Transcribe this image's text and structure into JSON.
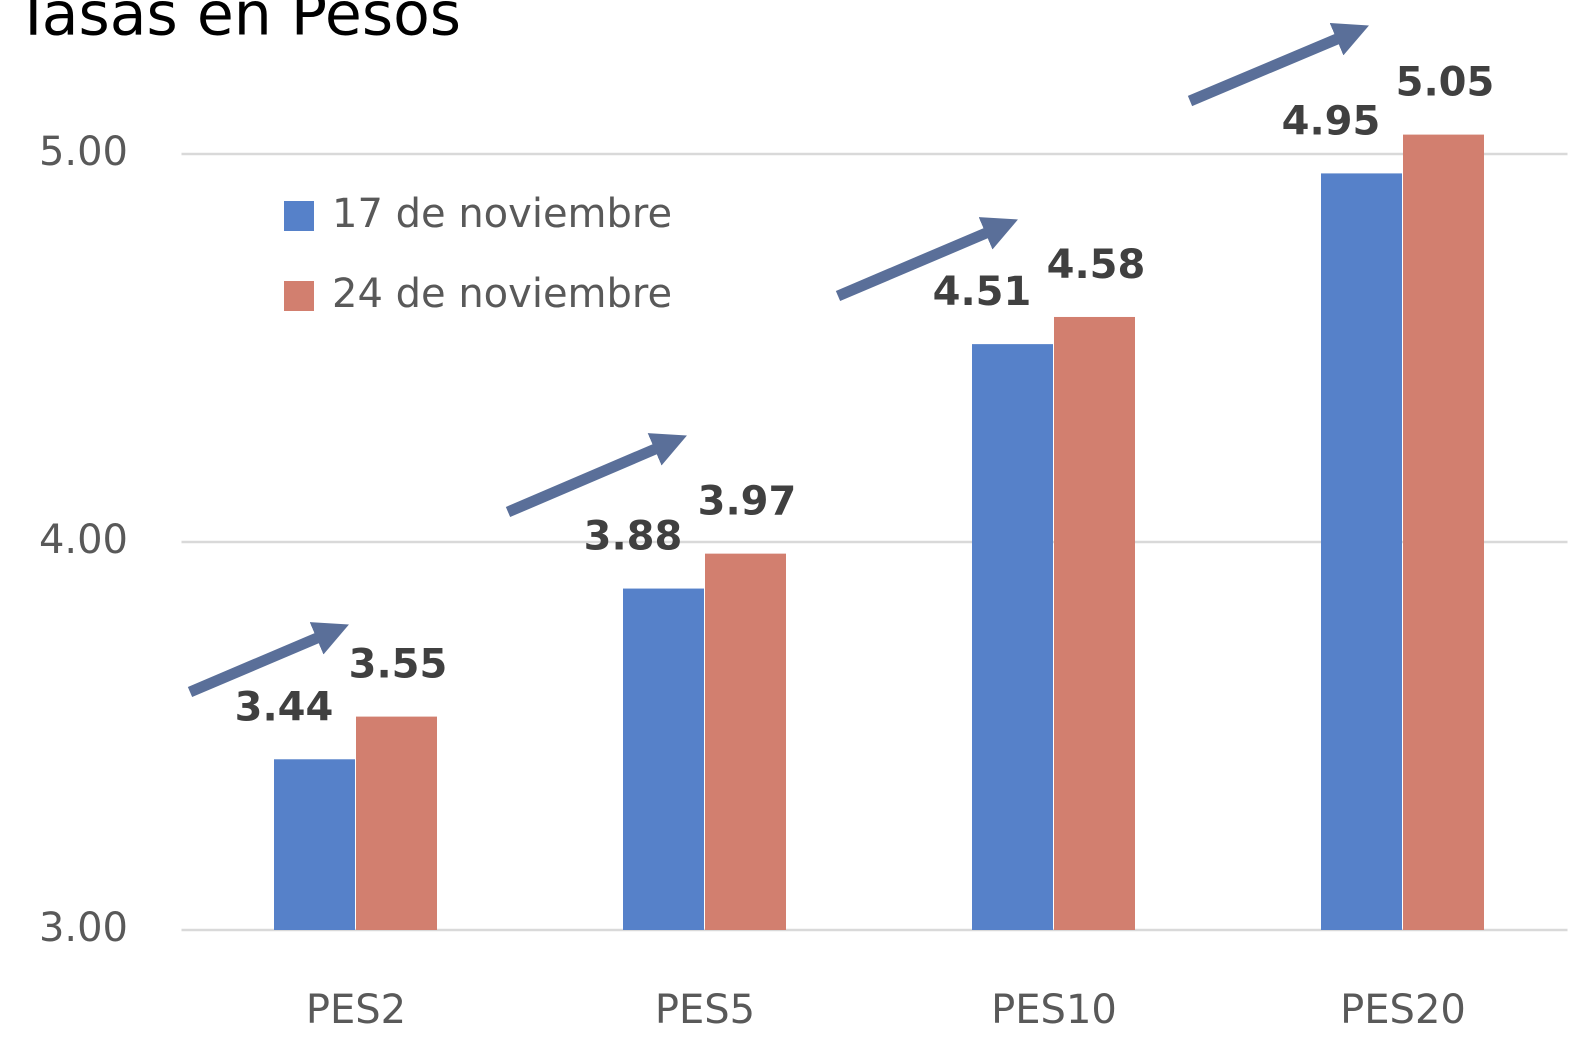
{
  "chart_data": {
    "type": "bar",
    "title": "Tasas en Pesos",
    "categories": [
      "PES2",
      "PES5",
      "PES10",
      "PES20"
    ],
    "series": [
      {
        "name": "17 de noviembre",
        "color": "#5681c9",
        "values": [
          3.44,
          3.88,
          4.51,
          4.95
        ]
      },
      {
        "name": "24 de noviembre",
        "color": "#d27f6f",
        "values": [
          3.55,
          3.97,
          4.58,
          5.05
        ]
      }
    ],
    "ylim": [
      3,
      5.3
    ],
    "yticks": [
      {
        "value": 3,
        "label": "3.00"
      },
      {
        "value": 4,
        "label": "4.00"
      },
      {
        "value": 5,
        "label": "5.00"
      }
    ],
    "grid": true,
    "legend": "upper left"
  }
}
